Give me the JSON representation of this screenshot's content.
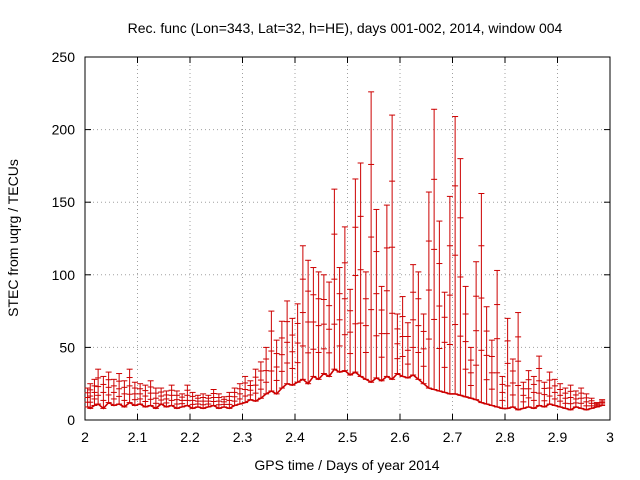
{
  "chart_data": {
    "type": "scatter",
    "style": "error-bars",
    "title": "Rec. func (Lon=343, Lat=32, h=HE), days 001-002, 2014, window 004",
    "xlabel": "GPS time / Days of year 2014",
    "ylabel": "STEC from uqrg / TECUs",
    "xlim": [
      2,
      3
    ],
    "ylim": [
      0,
      250
    ],
    "xticks": [
      "2",
      "2.1",
      "2.2",
      "2.3",
      "2.4",
      "2.5",
      "2.6",
      "2.7",
      "2.8",
      "2.9",
      "3"
    ],
    "yticks": [
      "0",
      "50",
      "100",
      "150",
      "200",
      "250"
    ],
    "grid": true,
    "series_color": "#cc0000",
    "series": [
      {
        "name": "STEC",
        "columns": [
          "x",
          "y_min",
          "y_max"
        ],
        "points": [
          [
            2.005,
            9,
            22
          ],
          [
            2.01,
            8,
            25
          ],
          [
            2.018,
            10,
            28
          ],
          [
            2.025,
            11,
            35
          ],
          [
            2.035,
            8,
            30
          ],
          [
            2.045,
            12,
            33
          ],
          [
            2.055,
            10,
            28
          ],
          [
            2.065,
            11,
            32
          ],
          [
            2.075,
            9,
            27
          ],
          [
            2.085,
            12,
            35
          ],
          [
            2.095,
            10,
            26
          ],
          [
            2.105,
            11,
            25
          ],
          [
            2.115,
            9,
            24
          ],
          [
            2.125,
            10,
            27
          ],
          [
            2.135,
            8,
            22
          ],
          [
            2.145,
            11,
            22
          ],
          [
            2.155,
            9,
            20
          ],
          [
            2.165,
            10,
            24
          ],
          [
            2.175,
            8,
            20
          ],
          [
            2.185,
            9,
            18
          ],
          [
            2.195,
            10,
            24
          ],
          [
            2.205,
            8,
            19
          ],
          [
            2.215,
            9,
            17
          ],
          [
            2.225,
            8,
            18
          ],
          [
            2.235,
            9,
            17
          ],
          [
            2.245,
            10,
            21
          ],
          [
            2.255,
            8,
            18
          ],
          [
            2.265,
            9,
            16
          ],
          [
            2.275,
            8,
            19
          ],
          [
            2.285,
            10,
            22
          ],
          [
            2.295,
            11,
            25
          ],
          [
            2.305,
            12,
            30
          ],
          [
            2.315,
            14,
            27
          ],
          [
            2.325,
            13,
            35
          ],
          [
            2.335,
            15,
            40
          ],
          [
            2.345,
            18,
            50
          ],
          [
            2.355,
            20,
            75
          ],
          [
            2.365,
            18,
            55
          ],
          [
            2.375,
            22,
            68
          ],
          [
            2.385,
            25,
            82
          ],
          [
            2.395,
            24,
            70
          ],
          [
            2.405,
            26,
            80
          ],
          [
            2.415,
            28,
            120
          ],
          [
            2.425,
            25,
            110
          ],
          [
            2.435,
            30,
            105
          ],
          [
            2.445,
            28,
            102
          ],
          [
            2.455,
            32,
            100
          ],
          [
            2.465,
            30,
            95
          ],
          [
            2.475,
            35,
            159
          ],
          [
            2.485,
            33,
            105
          ],
          [
            2.495,
            34,
            133
          ],
          [
            2.505,
            31,
            90
          ],
          [
            2.515,
            33,
            166
          ],
          [
            2.525,
            30,
            177
          ],
          [
            2.535,
            28,
            102
          ],
          [
            2.545,
            26,
            226
          ],
          [
            2.555,
            29,
            145
          ],
          [
            2.565,
            27,
            92
          ],
          [
            2.575,
            30,
            148
          ],
          [
            2.585,
            28,
            210
          ],
          [
            2.595,
            32,
            73
          ],
          [
            2.605,
            30,
            85
          ],
          [
            2.615,
            29,
            67
          ],
          [
            2.625,
            31,
            107
          ],
          [
            2.635,
            28,
            102
          ],
          [
            2.645,
            25,
            73
          ],
          [
            2.655,
            22,
            157
          ],
          [
            2.665,
            21,
            214
          ],
          [
            2.675,
            20,
            137
          ],
          [
            2.685,
            19,
            88
          ],
          [
            2.695,
            18,
            154
          ],
          [
            2.705,
            18,
            209
          ],
          [
            2.715,
            17,
            180
          ],
          [
            2.725,
            16,
            92
          ],
          [
            2.735,
            15,
            50
          ],
          [
            2.745,
            14,
            109
          ],
          [
            2.755,
            12,
            156
          ],
          [
            2.765,
            11,
            78
          ],
          [
            2.775,
            10,
            55
          ],
          [
            2.785,
            9,
            103
          ],
          [
            2.795,
            8,
            30
          ],
          [
            2.805,
            8,
            70
          ],
          [
            2.815,
            9,
            42
          ],
          [
            2.825,
            7,
            74
          ],
          [
            2.835,
            8,
            26
          ],
          [
            2.845,
            9,
            34
          ],
          [
            2.855,
            8,
            30
          ],
          [
            2.865,
            10,
            44
          ],
          [
            2.875,
            9,
            26
          ],
          [
            2.885,
            11,
            33
          ],
          [
            2.895,
            10,
            28
          ],
          [
            2.905,
            9,
            25
          ],
          [
            2.915,
            8,
            22
          ],
          [
            2.925,
            7,
            24
          ],
          [
            2.935,
            9,
            20
          ],
          [
            2.945,
            8,
            22
          ],
          [
            2.955,
            7,
            18
          ],
          [
            2.965,
            8,
            15
          ],
          [
            2.975,
            9,
            12
          ],
          [
            2.985,
            10,
            14
          ]
        ]
      }
    ]
  }
}
